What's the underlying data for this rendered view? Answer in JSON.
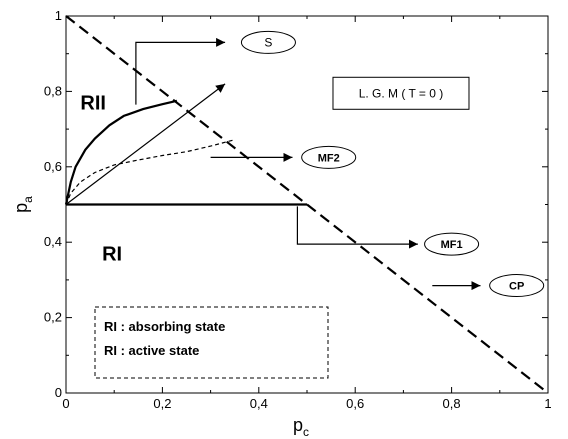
{
  "chart_data": {
    "type": "line",
    "xlabel": "p",
    "xlabel_sub": "c",
    "ylabel": "p",
    "ylabel_sub": "a",
    "xlim": [
      0,
      1
    ],
    "ylim": [
      0,
      1
    ],
    "x_ticks": [
      {
        "value": 0,
        "label": "0"
      },
      {
        "value": 0.2,
        "label": "0,2"
      },
      {
        "value": 0.4,
        "label": "0,4"
      },
      {
        "value": 0.6,
        "label": "0,6"
      },
      {
        "value": 0.8,
        "label": "0,8"
      },
      {
        "value": 1,
        "label": "1"
      }
    ],
    "y_ticks": [
      {
        "value": 0,
        "label": "0"
      },
      {
        "value": 0.2,
        "label": "0,2"
      },
      {
        "value": 0.4,
        "label": "0,4"
      },
      {
        "value": 0.6,
        "label": "0,6"
      },
      {
        "value": 0.8,
        "label": "0,8"
      },
      {
        "value": 1,
        "label": "1"
      }
    ],
    "grid": false,
    "series": [
      {
        "key": "cp",
        "style": "long-dash",
        "points": [
          [
            0,
            1
          ],
          [
            1,
            0
          ]
        ]
      },
      {
        "key": "mf1",
        "style": "solid-thick",
        "points": [
          [
            0,
            0.5
          ],
          [
            0.5,
            0.5
          ]
        ]
      },
      {
        "key": "s",
        "style": "solid-thick",
        "points": [
          [
            0,
            0.5
          ],
          [
            0.01,
            0.56
          ],
          [
            0.02,
            0.6
          ],
          [
            0.04,
            0.645
          ],
          [
            0.06,
            0.675
          ],
          [
            0.09,
            0.71
          ],
          [
            0.12,
            0.735
          ],
          [
            0.16,
            0.753
          ],
          [
            0.2,
            0.766
          ],
          [
            0.23,
            0.775
          ]
        ]
      },
      {
        "key": "mf2",
        "style": "dashed",
        "points": [
          [
            0,
            0.5
          ],
          [
            0.01,
            0.53
          ],
          [
            0.03,
            0.56
          ],
          [
            0.06,
            0.585
          ],
          [
            0.1,
            0.605
          ],
          [
            0.15,
            0.618
          ],
          [
            0.2,
            0.63
          ],
          [
            0.25,
            0.64
          ],
          [
            0.3,
            0.655
          ],
          [
            0.35,
            0.672
          ]
        ]
      },
      {
        "key": "lgm",
        "style": "solid-thin",
        "points": [
          [
            0,
            0.5
          ],
          [
            0.33,
            0.82
          ]
        ]
      }
    ],
    "region_labels": [
      {
        "text": "RII",
        "x": 0.005,
        "y": 0.77
      },
      {
        "text": "RI",
        "x": 0.05,
        "y": 0.37
      }
    ],
    "annotations": [
      {
        "key": "s",
        "text": "S",
        "elbow_from": [
          0.145,
          0.765
        ],
        "elbow_corner": [
          0.145,
          0.93
        ],
        "arrow_to": [
          0.33,
          0.93
        ],
        "box_center": [
          0.42,
          0.93
        ],
        "bold": false
      },
      {
        "key": "lgm",
        "text": "L. G. M ( T = 0 )",
        "box_center": [
          0.695,
          0.795
        ],
        "bold": false
      },
      {
        "key": "mf2",
        "text": "MF2",
        "elbow_from": [
          0.3,
          0.625
        ],
        "arrow_to": [
          0.47,
          0.625
        ],
        "box_center": [
          0.545,
          0.625
        ],
        "bold": true
      },
      {
        "key": "mf1",
        "text": "MF1",
        "elbow_from": [
          0.48,
          0.495
        ],
        "elbow_corner": [
          0.48,
          0.395
        ],
        "arrow_to": [
          0.73,
          0.395
        ],
        "box_center": [
          0.8,
          0.395
        ],
        "bold": true
      },
      {
        "key": "cp",
        "text": "CP",
        "elbow_from": [
          0.76,
          0.285
        ],
        "arrow_to": [
          0.86,
          0.285
        ],
        "box_center": [
          0.935,
          0.285
        ],
        "bold": true
      }
    ],
    "legend": {
      "placement": "bottom-left",
      "entries": [
        "RI : absorbing state",
        "RI : active state"
      ]
    }
  }
}
